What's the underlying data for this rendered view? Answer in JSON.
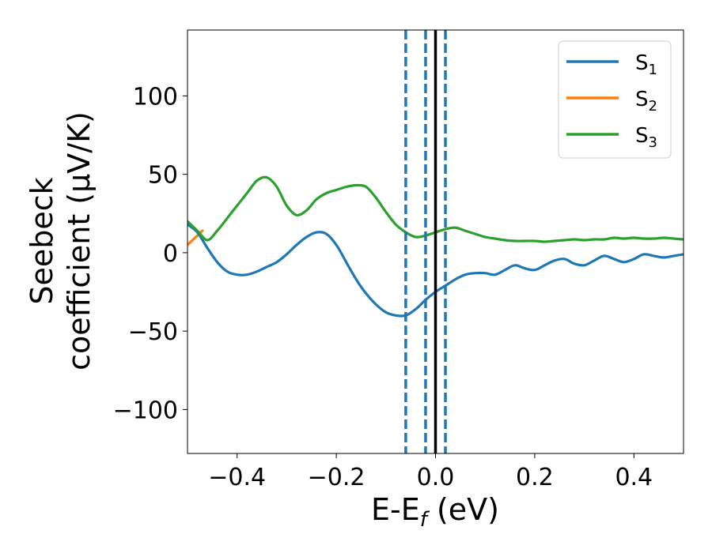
{
  "chart_data": {
    "type": "line",
    "xlabel_main": "E-E",
    "xlabel_sub": "f",
    "xlabel_unit": " (eV)",
    "ylabel_line1": "Seebeck",
    "ylabel_line2": "coefficient  (μV/K)",
    "xlim": [
      -0.5,
      0.5
    ],
    "ylim": [
      -128,
      142
    ],
    "x_ticks": [
      -0.4,
      -0.2,
      0.0,
      0.2,
      0.4
    ],
    "x_tick_labels": [
      "−0.4",
      "−0.2",
      "0.0",
      "0.2",
      "0.4"
    ],
    "y_ticks": [
      -100,
      -50,
      0,
      50,
      100
    ],
    "y_tick_labels": [
      "−100",
      "−50",
      "0",
      "50",
      "100"
    ],
    "grid": false,
    "legend_position": "top-right",
    "vlines": [
      {
        "x": -0.06,
        "style": "dashed",
        "color": "#1f77b4"
      },
      {
        "x": -0.02,
        "style": "dashed",
        "color": "#1f77b4"
      },
      {
        "x": 0.02,
        "style": "dashed",
        "color": "#1f77b4"
      },
      {
        "x": 0.0,
        "style": "solid",
        "color": "#000000"
      }
    ],
    "series": [
      {
        "name": "S",
        "sub": "1",
        "color": "#1f77b4",
        "x": [
          -0.5,
          -0.48,
          -0.46,
          -0.44,
          -0.42,
          -0.4,
          -0.38,
          -0.36,
          -0.34,
          -0.32,
          -0.3,
          -0.28,
          -0.26,
          -0.24,
          -0.22,
          -0.2,
          -0.18,
          -0.16,
          -0.14,
          -0.12,
          -0.1,
          -0.08,
          -0.06,
          -0.04,
          -0.02,
          0.0,
          0.02,
          0.04,
          0.06,
          0.08,
          0.1,
          0.12,
          0.14,
          0.16,
          0.18,
          0.2,
          0.22,
          0.24,
          0.26,
          0.28,
          0.3,
          0.32,
          0.34,
          0.36,
          0.38,
          0.4,
          0.42,
          0.44,
          0.46,
          0.48,
          0.5
        ],
        "y": [
          18,
          13,
          3,
          -6,
          -12,
          -14,
          -14,
          -12,
          -9,
          -6,
          -1,
          5,
          10,
          13,
          12,
          5,
          -6,
          -17,
          -26,
          -33,
          -38,
          -40,
          -40,
          -36,
          -30,
          -25,
          -21,
          -17,
          -14,
          -13,
          -13,
          -14,
          -11,
          -8,
          -10,
          -11,
          -8,
          -5,
          -4,
          -7,
          -8,
          -5,
          -2,
          -4,
          -6,
          -4,
          -1,
          -2,
          -3,
          -2,
          -1
        ]
      },
      {
        "name": "S",
        "sub": "2",
        "color": "#ff7f0e",
        "x": [
          -0.5,
          -0.49,
          -0.48,
          -0.47
        ],
        "y": [
          5,
          8,
          11,
          14
        ]
      },
      {
        "name": "S",
        "sub": "3",
        "color": "#2ca02c",
        "x": [
          -0.5,
          -0.48,
          -0.46,
          -0.44,
          -0.42,
          -0.4,
          -0.38,
          -0.36,
          -0.34,
          -0.32,
          -0.3,
          -0.28,
          -0.26,
          -0.24,
          -0.22,
          -0.2,
          -0.18,
          -0.16,
          -0.14,
          -0.12,
          -0.1,
          -0.08,
          -0.06,
          -0.04,
          -0.02,
          0.0,
          0.02,
          0.04,
          0.06,
          0.08,
          0.1,
          0.12,
          0.14,
          0.16,
          0.18,
          0.2,
          0.22,
          0.24,
          0.26,
          0.28,
          0.3,
          0.32,
          0.34,
          0.36,
          0.38,
          0.4,
          0.42,
          0.44,
          0.46,
          0.48,
          0.5
        ],
        "y": [
          20,
          14,
          8,
          14,
          22,
          30,
          38,
          46,
          48,
          42,
          30,
          24,
          27,
          34,
          38,
          40,
          42,
          43,
          42,
          35,
          26,
          18,
          13,
          10,
          11,
          13,
          15,
          16,
          14,
          12,
          10,
          9,
          8,
          7.5,
          7.5,
          7.5,
          7,
          7.5,
          8,
          8.5,
          8,
          8.5,
          8.5,
          9.5,
          9,
          9.5,
          9,
          9,
          9.5,
          9,
          8.5
        ]
      }
    ]
  }
}
